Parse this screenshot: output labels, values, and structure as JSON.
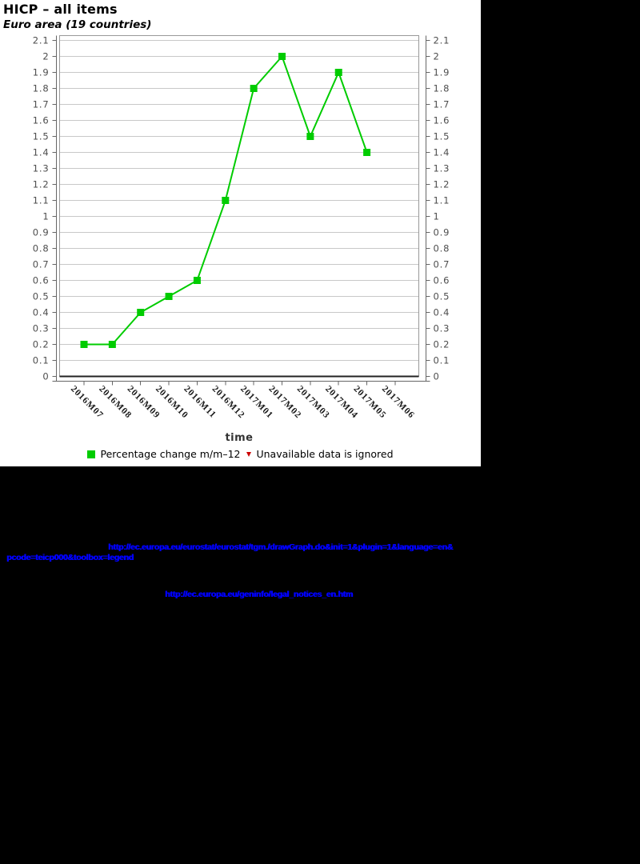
{
  "chart_data": {
    "type": "line",
    "title": "HICP – all items",
    "subtitle": "Euro area (19 countries)",
    "xlabel": "time",
    "ylabel": "",
    "ylim": [
      0,
      2.1
    ],
    "ytick_step": 0.1,
    "grid": "horizontal",
    "grid_color": "#c8c8c8",
    "categories": [
      "2016M07",
      "2016M08",
      "2016M09",
      "2016M10",
      "2016M11",
      "2016M12",
      "2017M01",
      "2017M02",
      "2017M03",
      "2017M04",
      "2017M05",
      "2017M06"
    ],
    "series": [
      {
        "name": "Percentage change m/m–12",
        "color": "#00cc00",
        "marker": "square",
        "values": [
          0.2,
          0.2,
          0.4,
          0.5,
          0.6,
          1.1,
          1.8,
          2.0,
          1.5,
          1.9,
          1.4,
          null
        ]
      }
    ],
    "legend_position": "bottom",
    "legend": [
      {
        "marker": "square",
        "color": "#00cc00",
        "label": "Percentage change m/m–12"
      },
      {
        "marker": "triangle-down",
        "color": "#cc0000",
        "label": "Unavailable data is ignored"
      }
    ]
  },
  "footer": {
    "link_color": "#0000ff",
    "graph_url_line1": "http://ec.europa.eu/eurostat/eurostat/tgm./drawGraph.do&init=1&plugin=1&language=en&",
    "graph_url_line2": "pcode=teicp000&toolbox=legend",
    "legal_url": "http://ec.europa.eu/geninfo/legal_notices_en.htm"
  }
}
